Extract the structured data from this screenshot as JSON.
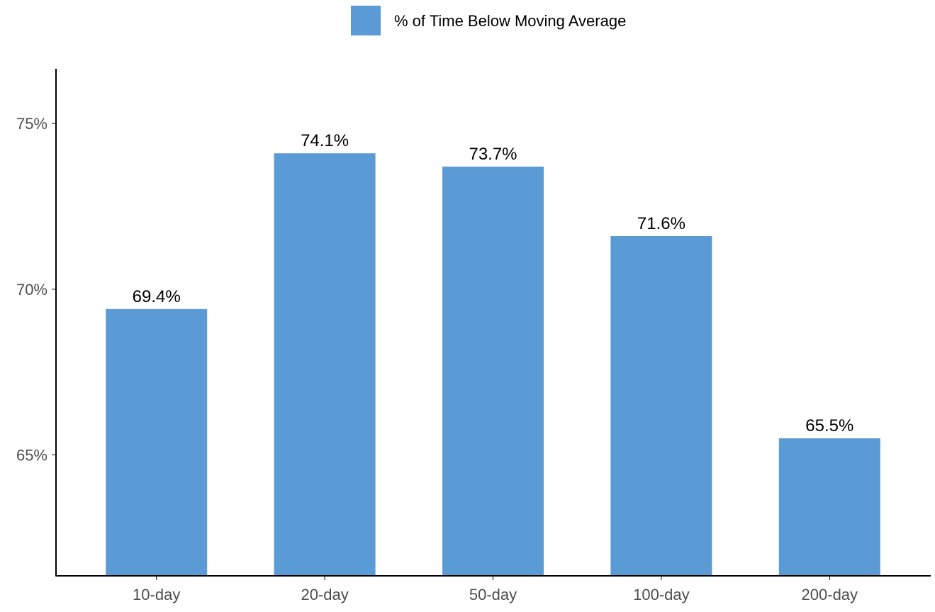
{
  "chart_data": {
    "type": "bar",
    "title": "",
    "xlabel": "",
    "ylabel": "",
    "categories": [
      "10-day",
      "20-day",
      "50-day",
      "100-day",
      "200-day"
    ],
    "series": [
      {
        "name": "% of Time Below Moving Average",
        "values": [
          69.4,
          74.1,
          73.7,
          71.6,
          65.5
        ],
        "color": "#5b9bd5"
      }
    ],
    "data_labels": [
      "69.4%",
      "74.1%",
      "73.7%",
      "71.6%",
      "65.5%"
    ],
    "y_ticks": [
      65,
      70,
      75
    ],
    "y_tick_labels": [
      "65%",
      "70%",
      "75%"
    ],
    "ylim": [
      61.35,
      76.65
    ],
    "legend_position": "top-center",
    "grid": false
  }
}
